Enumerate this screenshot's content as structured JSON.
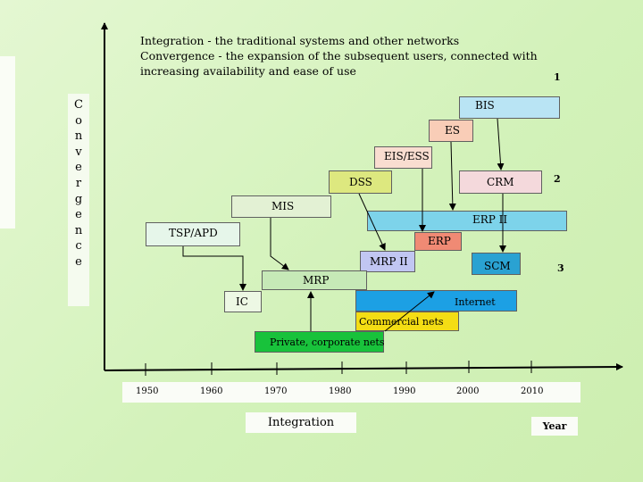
{
  "title_lines": [
    "Integration - the traditional systems and other networks",
    "Convergence - the expansion of the subsequent users, connected with",
    "increasing availability and ease of use"
  ],
  "vertical_label": [
    "C",
    "o",
    "n",
    "v",
    "e",
    "r",
    "g",
    "e",
    "n",
    "c",
    "e"
  ],
  "boxes": {
    "bis": "BIS",
    "es": "ES",
    "eis_ess": "EIS/ESS",
    "dss": "DSS",
    "crm": "CRM",
    "mis": "MIS",
    "erp2": "ERP II",
    "tsp_apd": "TSP/APD",
    "erp": "ERP",
    "mrp2": "MRP II",
    "scm": "SCM",
    "mrp": "MRP",
    "ic": "IC",
    "internet": "Internet",
    "commercial": "Commercial nets",
    "private": "Private, corporate nets"
  },
  "markers": {
    "m1": "1",
    "m2": "2",
    "m3": "3"
  },
  "years": [
    "1950",
    "1960",
    "1970",
    "1980",
    "1990",
    "2000",
    "2010"
  ],
  "integration_label": "Integration",
  "year_label": "Year",
  "colors": {
    "bis": "#b9e4f4",
    "es": "#f9cdb7",
    "eis_ess": "#f9ddd0",
    "dss": "#dde87f",
    "crm": "#f4d9dc",
    "mis": "#e3f1d4",
    "erp2": "#7dd3ea",
    "tsp_apd": "#e6f6ea",
    "erp": "#f08a74",
    "mrp2": "#c1c6f2",
    "scm": "#2aa2d2",
    "mrp": "#c6e9b7",
    "ic": "#edf8e4",
    "internet": "#1ca0e4",
    "commercial": "#f4dd14",
    "private": "#18c23b"
  }
}
